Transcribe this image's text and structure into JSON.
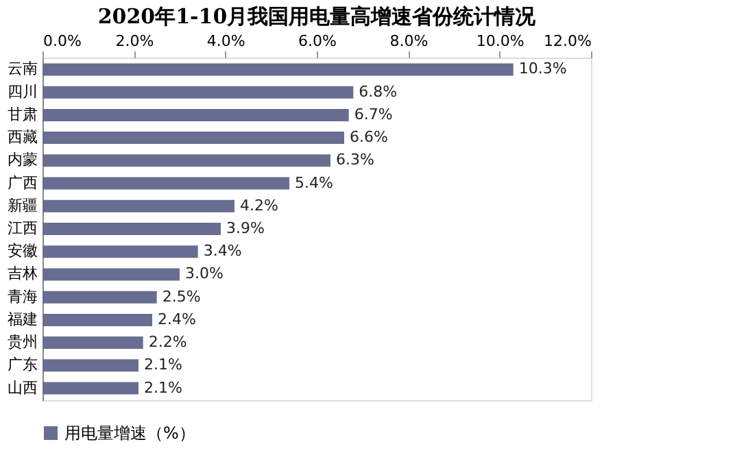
{
  "chart_data": {
    "type": "bar",
    "orientation": "horizontal",
    "title": "2020年1-10月我国用电量高增速省份统计情况",
    "categories": [
      "云南",
      "四川",
      "甘肃",
      "西藏",
      "内蒙",
      "广西",
      "新疆",
      "江西",
      "安徽",
      "吉林",
      "青海",
      "福建",
      "贵州",
      "广东",
      "山西"
    ],
    "series": [
      {
        "name": "用电量增速（%）",
        "color": "#686d92",
        "values": [
          10.3,
          6.8,
          6.7,
          6.6,
          6.3,
          5.4,
          4.2,
          3.9,
          3.4,
          3.0,
          2.5,
          2.4,
          2.2,
          2.1,
          2.1
        ],
        "value_labels": [
          "10.3%",
          "6.8%",
          "6.7%",
          "6.6%",
          "6.3%",
          "5.4%",
          "4.2%",
          "3.9%",
          "3.4%",
          "3.0%",
          "2.5%",
          "2.4%",
          "2.2%",
          "2.1%",
          "2.1%"
        ]
      }
    ],
    "xlim": [
      0,
      12
    ],
    "xticks": [
      {
        "value": 0,
        "label": "0.0%"
      },
      {
        "value": 2,
        "label": "2.0%"
      },
      {
        "value": 4,
        "label": "4.0%"
      },
      {
        "value": 6,
        "label": "6.0%"
      },
      {
        "value": 8,
        "label": "8.0%"
      },
      {
        "value": 10,
        "label": "10.0%"
      },
      {
        "value": 12,
        "label": "12.0%"
      }
    ],
    "grid": false,
    "legend": "bottom"
  }
}
